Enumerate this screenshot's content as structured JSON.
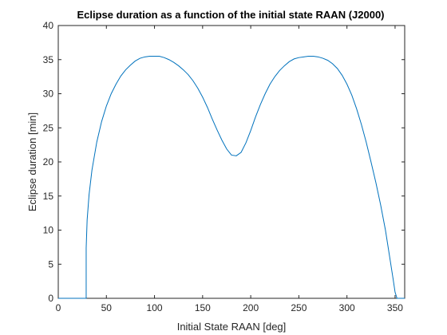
{
  "chart_data": {
    "type": "line",
    "title": "Eclipse duration as a function of the initial state RAAN (J2000)",
    "xlabel": "Initial State RAAN [deg]",
    "ylabel": "Eclipse duration [min]",
    "xlim": [
      0,
      360
    ],
    "ylim": [
      0,
      40
    ],
    "xticks": [
      0,
      50,
      100,
      150,
      200,
      250,
      300,
      350
    ],
    "yticks": [
      0,
      5,
      10,
      15,
      20,
      25,
      30,
      35,
      40
    ],
    "grid": false,
    "legend": "none",
    "series": [
      {
        "color": "#0072BD",
        "x": [
          0,
          10,
          20,
          29,
          29,
          30,
          32,
          35,
          40,
          45,
          50,
          55,
          60,
          65,
          70,
          75,
          80,
          85,
          90,
          95,
          100,
          105,
          110,
          115,
          120,
          125,
          130,
          135,
          140,
          145,
          150,
          155,
          160,
          165,
          170,
          175,
          180,
          185,
          190,
          195,
          200,
          205,
          210,
          215,
          220,
          225,
          230,
          235,
          240,
          245,
          250,
          255,
          260,
          265,
          270,
          275,
          280,
          285,
          290,
          295,
          300,
          305,
          310,
          315,
          320,
          325,
          330,
          335,
          340,
          345,
          348,
          350,
          352,
          353,
          353,
          360
        ],
        "y": [
          0,
          0,
          0,
          0,
          7.4,
          11.5,
          15.2,
          18.8,
          22.9,
          25.9,
          28.2,
          30.0,
          31.4,
          32.6,
          33.5,
          34.2,
          34.8,
          35.2,
          35.4,
          35.5,
          35.5,
          35.5,
          35.3,
          35.0,
          34.6,
          34.1,
          33.5,
          32.8,
          31.9,
          30.8,
          29.5,
          28.0,
          26.3,
          24.7,
          23.2,
          21.9,
          21.0,
          20.9,
          21.4,
          22.8,
          24.6,
          26.6,
          28.4,
          30.0,
          31.4,
          32.5,
          33.4,
          34.1,
          34.7,
          35.1,
          35.3,
          35.4,
          35.5,
          35.5,
          35.4,
          35.2,
          34.9,
          34.4,
          33.7,
          32.7,
          31.4,
          29.8,
          27.8,
          25.5,
          22.9,
          20.0,
          17.0,
          13.7,
          10.0,
          5.5,
          2.8,
          0.9,
          0,
          0,
          0,
          0
        ]
      }
    ]
  }
}
